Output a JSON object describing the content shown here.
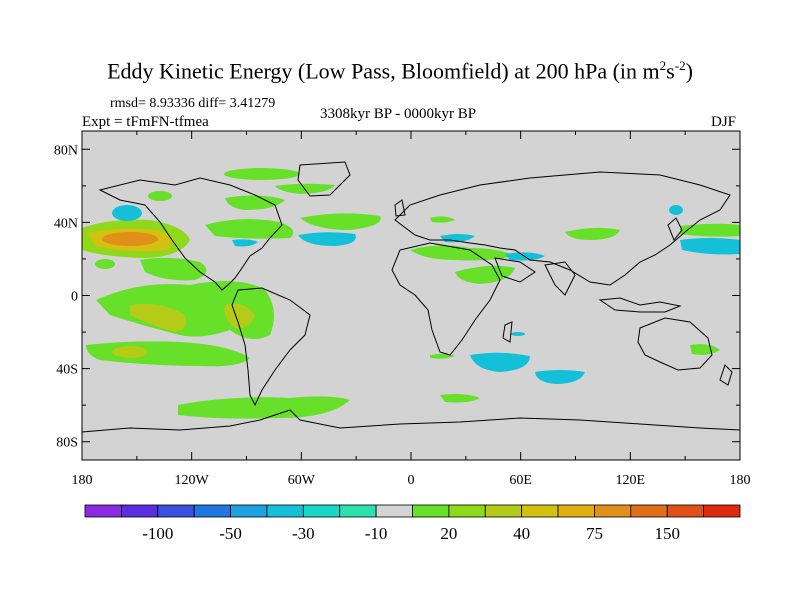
{
  "title": {
    "main": "Eddy Kinetic Energy (Low Pass, Bloomfield) at 200 hPa (in m",
    "sup1": "2",
    "mid": "s",
    "sup2": "-2",
    "close": ")"
  },
  "stats": "rmsd= 8.93336 diff= 3.41279",
  "experiment": "Expt = tFmFN-tfmea",
  "period": "3308kyr BP - 0000kyr BP",
  "season": "DJF",
  "map": {
    "projection": "cylindrical equidistant",
    "background_color": "#d3d3d3",
    "lon_range": [
      -180,
      180
    ],
    "lat_range": [
      -90,
      90
    ],
    "x_ticks": [
      "180",
      "120W",
      "60W",
      "0",
      "60E",
      "120E",
      "180"
    ],
    "y_ticks": [
      "80N",
      "40N",
      "0",
      "40S",
      "80S"
    ]
  },
  "colorbar": {
    "labels": [
      "-100",
      "-50",
      "-30",
      "-10",
      "20",
      "40",
      "75",
      "150"
    ],
    "colors": [
      "#8a2be2",
      "#5a2ee0",
      "#3c4fe0",
      "#1f78e0",
      "#1da1e0",
      "#14c0d8",
      "#18d8c8",
      "#2ee0b0",
      "#d3d3d3",
      "#66e028",
      "#90d81c",
      "#b4cc18",
      "#d4c010",
      "#e0b010",
      "#e09018",
      "#e07018",
      "#e05018",
      "#e02a10"
    ]
  }
}
